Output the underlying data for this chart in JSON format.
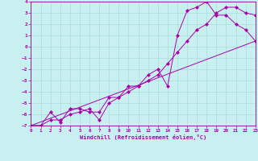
{
  "xlabel": "Windchill (Refroidissement éolien,°C)",
  "bg_color": "#c8f0f0",
  "line_color": "#aa00aa",
  "grid_color": "#aadddd",
  "spine_color": "#880088",
  "x_min": 0,
  "x_max": 23,
  "y_min": -7,
  "y_max": 4,
  "line1_x": [
    0,
    1,
    2,
    3,
    4,
    5,
    6,
    7,
    8,
    9,
    10,
    11,
    12,
    13,
    14,
    15,
    16,
    17,
    18,
    19,
    20,
    21,
    22,
    23
  ],
  "line1_y": [
    -7.0,
    -7.0,
    -5.8,
    -6.7,
    -5.5,
    -5.5,
    -5.8,
    -5.8,
    -4.5,
    -4.5,
    -3.5,
    -3.5,
    -2.5,
    -2.0,
    -3.5,
    1.0,
    3.2,
    3.5,
    4.0,
    2.8,
    2.8,
    2.0,
    1.5,
    0.5
  ],
  "line2_x": [
    0,
    1,
    2,
    3,
    4,
    5,
    6,
    7,
    8,
    9,
    10,
    11,
    12,
    13,
    14,
    15,
    16,
    17,
    18,
    19,
    20,
    21,
    22,
    23
  ],
  "line2_y": [
    -7.0,
    -7.0,
    -6.5,
    -6.5,
    -6.0,
    -5.8,
    -5.5,
    -6.5,
    -5.0,
    -4.5,
    -4.0,
    -3.5,
    -3.0,
    -2.5,
    -1.5,
    -0.5,
    0.5,
    1.5,
    2.0,
    3.0,
    3.5,
    3.5,
    3.0,
    2.8
  ],
  "line3_x": [
    0,
    23
  ],
  "line3_y": [
    -7.0,
    0.5
  ],
  "markersize": 2.5
}
